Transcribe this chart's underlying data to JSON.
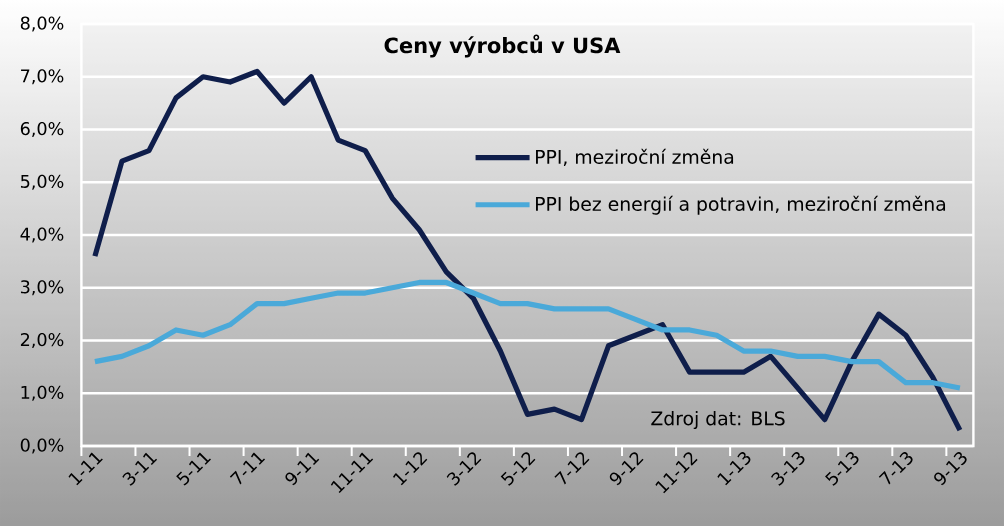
{
  "chart_data": {
    "type": "line",
    "title": "Ceny výrobců v USA",
    "categories": [
      "1-11",
      null,
      "3-11",
      null,
      "5-11",
      null,
      "7-11",
      null,
      "9-11",
      null,
      "11-11",
      null,
      "1-12",
      null,
      "3-12",
      null,
      "5-12",
      null,
      "7-12",
      null,
      "9-12",
      null,
      "11-12",
      null,
      "1-13",
      null,
      "3-13",
      null,
      "5-13",
      null,
      "7-13",
      null,
      "9-13"
    ],
    "series": [
      {
        "name": "PPI, meziroční změna",
        "color": "#0f1e4b",
        "values": [
          3.6,
          5.4,
          5.6,
          6.6,
          7.0,
          6.9,
          7.1,
          6.5,
          7.0,
          5.8,
          5.6,
          4.7,
          4.1,
          3.3,
          2.8,
          1.8,
          0.6,
          0.7,
          0.5,
          1.9,
          2.1,
          2.3,
          1.4,
          1.4,
          1.4,
          1.7,
          1.1,
          0.5,
          1.6,
          2.5,
          2.1,
          1.3,
          0.3
        ]
      },
      {
        "name": "PPI bez energií a potravin, meziroční změna",
        "color": "#4aa9d9",
        "values": [
          1.6,
          1.7,
          1.9,
          2.2,
          2.1,
          2.3,
          2.7,
          2.7,
          2.8,
          2.9,
          2.9,
          3.0,
          3.1,
          3.1,
          2.9,
          2.7,
          2.7,
          2.6,
          2.6,
          2.6,
          2.4,
          2.2,
          2.2,
          2.1,
          1.8,
          1.8,
          1.7,
          1.7,
          1.6,
          1.6,
          1.2,
          1.2,
          1.1
        ]
      }
    ],
    "ylim": [
      0,
      8
    ],
    "yticks": [
      {
        "value": 0,
        "label": "0,0%"
      },
      {
        "value": 1,
        "label": "1,0%"
      },
      {
        "value": 2,
        "label": "2,0%"
      },
      {
        "value": 3,
        "label": "3,0%"
      },
      {
        "value": 4,
        "label": "4,0%"
      },
      {
        "value": 5,
        "label": "5,0%"
      },
      {
        "value": 6,
        "label": "6,0%"
      },
      {
        "value": 7,
        "label": "7,0%"
      },
      {
        "value": 8,
        "label": "8,0%"
      }
    ],
    "grid": "y",
    "legend": "top right",
    "line_style": "solid",
    "annotations": [
      "Zdroj dat: BLS"
    ]
  }
}
